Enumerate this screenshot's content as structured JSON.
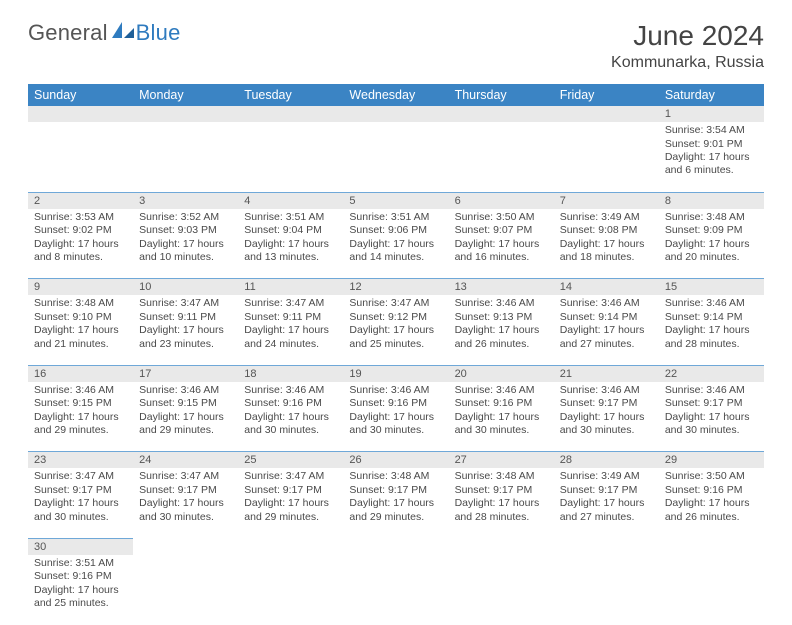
{
  "brand": {
    "general": "General",
    "blue": "Blue"
  },
  "title": "June 2024",
  "location": "Kommunarka, Russia",
  "colors": {
    "header_bg": "#3b84c4",
    "header_text": "#ffffff",
    "daynum_bg": "#e9e9e9",
    "row_divider": "#6fa8d8",
    "body_text": "#4a4a4a",
    "page_bg": "#ffffff"
  },
  "typography": {
    "title_fontsize": 28,
    "location_fontsize": 16,
    "header_fontsize": 12.5,
    "cell_fontsize": 10.5
  },
  "weekdays": [
    "Sunday",
    "Monday",
    "Tuesday",
    "Wednesday",
    "Thursday",
    "Friday",
    "Saturday"
  ],
  "weeks": [
    [
      null,
      null,
      null,
      null,
      null,
      null,
      {
        "n": "1",
        "sr": "Sunrise: 3:54 AM",
        "ss": "Sunset: 9:01 PM",
        "d1": "Daylight: 17 hours",
        "d2": "and 6 minutes."
      }
    ],
    [
      {
        "n": "2",
        "sr": "Sunrise: 3:53 AM",
        "ss": "Sunset: 9:02 PM",
        "d1": "Daylight: 17 hours",
        "d2": "and 8 minutes."
      },
      {
        "n": "3",
        "sr": "Sunrise: 3:52 AM",
        "ss": "Sunset: 9:03 PM",
        "d1": "Daylight: 17 hours",
        "d2": "and 10 minutes."
      },
      {
        "n": "4",
        "sr": "Sunrise: 3:51 AM",
        "ss": "Sunset: 9:04 PM",
        "d1": "Daylight: 17 hours",
        "d2": "and 13 minutes."
      },
      {
        "n": "5",
        "sr": "Sunrise: 3:51 AM",
        "ss": "Sunset: 9:06 PM",
        "d1": "Daylight: 17 hours",
        "d2": "and 14 minutes."
      },
      {
        "n": "6",
        "sr": "Sunrise: 3:50 AM",
        "ss": "Sunset: 9:07 PM",
        "d1": "Daylight: 17 hours",
        "d2": "and 16 minutes."
      },
      {
        "n": "7",
        "sr": "Sunrise: 3:49 AM",
        "ss": "Sunset: 9:08 PM",
        "d1": "Daylight: 17 hours",
        "d2": "and 18 minutes."
      },
      {
        "n": "8",
        "sr": "Sunrise: 3:48 AM",
        "ss": "Sunset: 9:09 PM",
        "d1": "Daylight: 17 hours",
        "d2": "and 20 minutes."
      }
    ],
    [
      {
        "n": "9",
        "sr": "Sunrise: 3:48 AM",
        "ss": "Sunset: 9:10 PM",
        "d1": "Daylight: 17 hours",
        "d2": "and 21 minutes."
      },
      {
        "n": "10",
        "sr": "Sunrise: 3:47 AM",
        "ss": "Sunset: 9:11 PM",
        "d1": "Daylight: 17 hours",
        "d2": "and 23 minutes."
      },
      {
        "n": "11",
        "sr": "Sunrise: 3:47 AM",
        "ss": "Sunset: 9:11 PM",
        "d1": "Daylight: 17 hours",
        "d2": "and 24 minutes."
      },
      {
        "n": "12",
        "sr": "Sunrise: 3:47 AM",
        "ss": "Sunset: 9:12 PM",
        "d1": "Daylight: 17 hours",
        "d2": "and 25 minutes."
      },
      {
        "n": "13",
        "sr": "Sunrise: 3:46 AM",
        "ss": "Sunset: 9:13 PM",
        "d1": "Daylight: 17 hours",
        "d2": "and 26 minutes."
      },
      {
        "n": "14",
        "sr": "Sunrise: 3:46 AM",
        "ss": "Sunset: 9:14 PM",
        "d1": "Daylight: 17 hours",
        "d2": "and 27 minutes."
      },
      {
        "n": "15",
        "sr": "Sunrise: 3:46 AM",
        "ss": "Sunset: 9:14 PM",
        "d1": "Daylight: 17 hours",
        "d2": "and 28 minutes."
      }
    ],
    [
      {
        "n": "16",
        "sr": "Sunrise: 3:46 AM",
        "ss": "Sunset: 9:15 PM",
        "d1": "Daylight: 17 hours",
        "d2": "and 29 minutes."
      },
      {
        "n": "17",
        "sr": "Sunrise: 3:46 AM",
        "ss": "Sunset: 9:15 PM",
        "d1": "Daylight: 17 hours",
        "d2": "and 29 minutes."
      },
      {
        "n": "18",
        "sr": "Sunrise: 3:46 AM",
        "ss": "Sunset: 9:16 PM",
        "d1": "Daylight: 17 hours",
        "d2": "and 30 minutes."
      },
      {
        "n": "19",
        "sr": "Sunrise: 3:46 AM",
        "ss": "Sunset: 9:16 PM",
        "d1": "Daylight: 17 hours",
        "d2": "and 30 minutes."
      },
      {
        "n": "20",
        "sr": "Sunrise: 3:46 AM",
        "ss": "Sunset: 9:16 PM",
        "d1": "Daylight: 17 hours",
        "d2": "and 30 minutes."
      },
      {
        "n": "21",
        "sr": "Sunrise: 3:46 AM",
        "ss": "Sunset: 9:17 PM",
        "d1": "Daylight: 17 hours",
        "d2": "and 30 minutes."
      },
      {
        "n": "22",
        "sr": "Sunrise: 3:46 AM",
        "ss": "Sunset: 9:17 PM",
        "d1": "Daylight: 17 hours",
        "d2": "and 30 minutes."
      }
    ],
    [
      {
        "n": "23",
        "sr": "Sunrise: 3:47 AM",
        "ss": "Sunset: 9:17 PM",
        "d1": "Daylight: 17 hours",
        "d2": "and 30 minutes."
      },
      {
        "n": "24",
        "sr": "Sunrise: 3:47 AM",
        "ss": "Sunset: 9:17 PM",
        "d1": "Daylight: 17 hours",
        "d2": "and 30 minutes."
      },
      {
        "n": "25",
        "sr": "Sunrise: 3:47 AM",
        "ss": "Sunset: 9:17 PM",
        "d1": "Daylight: 17 hours",
        "d2": "and 29 minutes."
      },
      {
        "n": "26",
        "sr": "Sunrise: 3:48 AM",
        "ss": "Sunset: 9:17 PM",
        "d1": "Daylight: 17 hours",
        "d2": "and 29 minutes."
      },
      {
        "n": "27",
        "sr": "Sunrise: 3:48 AM",
        "ss": "Sunset: 9:17 PM",
        "d1": "Daylight: 17 hours",
        "d2": "and 28 minutes."
      },
      {
        "n": "28",
        "sr": "Sunrise: 3:49 AM",
        "ss": "Sunset: 9:17 PM",
        "d1": "Daylight: 17 hours",
        "d2": "and 27 minutes."
      },
      {
        "n": "29",
        "sr": "Sunrise: 3:50 AM",
        "ss": "Sunset: 9:16 PM",
        "d1": "Daylight: 17 hours",
        "d2": "and 26 minutes."
      }
    ],
    [
      {
        "n": "30",
        "sr": "Sunrise: 3:51 AM",
        "ss": "Sunset: 9:16 PM",
        "d1": "Daylight: 17 hours",
        "d2": "and 25 minutes."
      },
      null,
      null,
      null,
      null,
      null,
      null
    ]
  ]
}
